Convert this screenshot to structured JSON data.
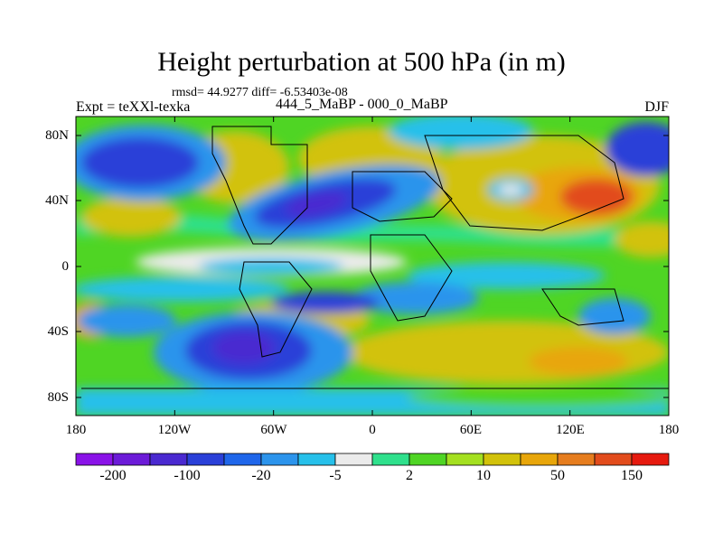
{
  "title": "Height perturbation at 500 hPa (in m)",
  "stats": "rmsd= 44.9277 diff= -6.53403e-08",
  "left_string": "Expt = teXXl-texka",
  "center_string": "444_5_MaBP - 000_0_MaBP",
  "right_string": "DJF",
  "lat_ticks": [
    "80N",
    "40N",
    "0",
    "40S",
    "80S"
  ],
  "lon_ticks": [
    "180",
    "120W",
    "60W",
    "0",
    "60E",
    "120E",
    "180"
  ],
  "colorbar": {
    "colors": [
      "#8a13e8",
      "#6c1bd8",
      "#4a29d0",
      "#2a40d8",
      "#1f66ea",
      "#2c94ec",
      "#27c0ea",
      "#ebebeb",
      "#2fe08c",
      "#4fd524",
      "#a4e020",
      "#d2c20a",
      "#e8a60a",
      "#e67d1e",
      "#e24c1c",
      "#e61a0f"
    ],
    "labels": [
      {
        "text": "-200",
        "after_box": 1
      },
      {
        "text": "-100",
        "after_box": 3
      },
      {
        "text": "-20",
        "after_box": 5
      },
      {
        "text": "-5",
        "after_box": 7
      },
      {
        "text": "2",
        "after_box": 9
      },
      {
        "text": "10",
        "after_box": 11
      },
      {
        "text": "50",
        "after_box": 13
      },
      {
        "text": "150",
        "after_box": 15
      }
    ]
  }
}
